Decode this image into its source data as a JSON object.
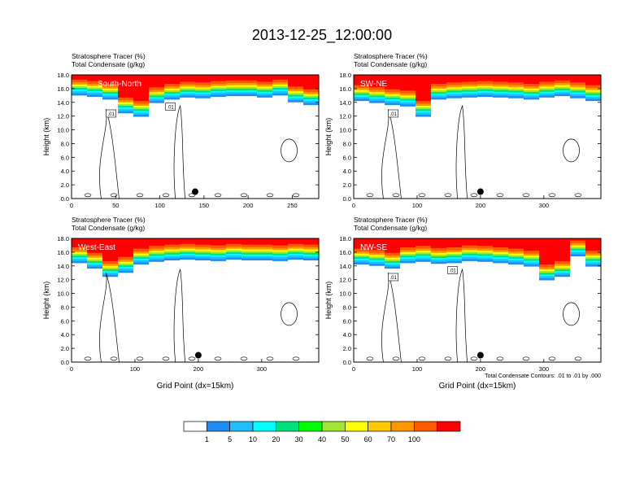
{
  "title": "2013-12-25_12:00:00",
  "chart_data": [
    {
      "type": "heatmap",
      "panel_label": "South-North",
      "subtitle_lines": [
        "Stratosphere Tracer   (%)",
        "Total Condensate   (g/kg)"
      ],
      "ylabel": "Height (km)",
      "xlabel": "",
      "ylim": [
        0,
        18
      ],
      "yticks": [
        "0.0",
        "2.0",
        "4.0",
        "6.0",
        "8.0",
        "10.0",
        "12.0",
        "14.0",
        "16.0",
        "18.0"
      ],
      "xlim": [
        0,
        280
      ],
      "xticks": [
        0,
        50,
        100,
        150,
        200,
        250
      ],
      "tropopause_km": [
        15.6,
        15.4,
        15.0,
        13.0,
        12.5,
        14.5,
        15.0,
        15.3,
        15.2,
        15.4,
        15.5,
        15.5,
        15.3,
        15.6,
        14.6,
        14.2
      ],
      "contour_labels": [
        ".01",
        ".01"
      ],
      "marker_x": 140
    },
    {
      "type": "heatmap",
      "panel_label": "SW-NE",
      "subtitle_lines": [
        "Stratosphere Tracer   (%)",
        "Total Condensate   (g/kg)"
      ],
      "ylabel": "Height (km)",
      "xlabel": "",
      "ylim": [
        0,
        18
      ],
      "yticks": [
        "0.0",
        "2.0",
        "4.0",
        "6.0",
        "8.0",
        "10.0",
        "12.0",
        "14.0",
        "16.0",
        "18.0"
      ],
      "xlim": [
        0,
        390
      ],
      "xticks": [
        0,
        100,
        200,
        300
      ],
      "tropopause_km": [
        14.8,
        14.5,
        14.2,
        14.0,
        12.5,
        15.0,
        15.2,
        15.3,
        15.4,
        15.3,
        15.2,
        15.0,
        15.3,
        15.5,
        15.2,
        14.8
      ],
      "contour_labels": [
        ".01"
      ],
      "marker_x": 200
    },
    {
      "type": "heatmap",
      "panel_label": "West-East",
      "subtitle_lines": [
        "Stratosphere Tracer   (%)",
        "Total Condensate   (g/kg)"
      ],
      "ylabel": "Height (km)",
      "xlabel": "Grid Point (dx=15km)",
      "ylim": [
        0,
        18
      ],
      "yticks": [
        "0.0",
        "2.0",
        "4.0",
        "6.0",
        "8.0",
        "10.0",
        "12.0",
        "14.0",
        "16.0",
        "18.0"
      ],
      "xlim": [
        0,
        390
      ],
      "xticks": [
        0,
        100,
        200,
        300
      ],
      "tropopause_km": [
        15.0,
        14.2,
        13.0,
        13.6,
        14.8,
        15.2,
        15.4,
        15.5,
        15.4,
        15.3,
        15.5,
        15.4,
        15.4,
        15.3,
        15.5,
        15.4
      ],
      "contour_labels": [],
      "marker_x": 200
    },
    {
      "type": "heatmap",
      "panel_label": "NW-SE",
      "subtitle_lines": [
        "Stratosphere Tracer   (%)",
        "Total Condensate   (g/kg)"
      ],
      "ylabel": "Height (km)",
      "xlabel": "Grid Point (dx=15km)",
      "ylim": [
        0,
        18
      ],
      "yticks": [
        "0.0",
        "2.0",
        "4.0",
        "6.0",
        "8.0",
        "10.0",
        "12.0",
        "14.0",
        "16.0",
        "18.0"
      ],
      "xlim": [
        0,
        390
      ],
      "xticks": [
        0,
        100,
        200,
        300
      ],
      "tropopause_km": [
        14.8,
        14.6,
        14.2,
        15.0,
        15.2,
        14.9,
        15.0,
        15.3,
        15.2,
        15.0,
        14.8,
        14.5,
        12.5,
        13.0,
        16.0,
        14.5
      ],
      "contour_labels": [
        ".01",
        ".01"
      ],
      "marker_x": 200,
      "note": "Total Condensate Contours: .01 to .01 by .000"
    }
  ],
  "colorbar": {
    "labels": [
      "1",
      "5",
      "10",
      "20",
      "30",
      "40",
      "50",
      "60",
      "70",
      "100"
    ],
    "colors": [
      "#ffffff",
      "#1e8cf0",
      "#1ebeff",
      "#00ffff",
      "#00e17d",
      "#00ff00",
      "#a0e632",
      "#ffff00",
      "#ffc800",
      "#ff9600",
      "#ff5a00",
      "#ff0000"
    ]
  }
}
